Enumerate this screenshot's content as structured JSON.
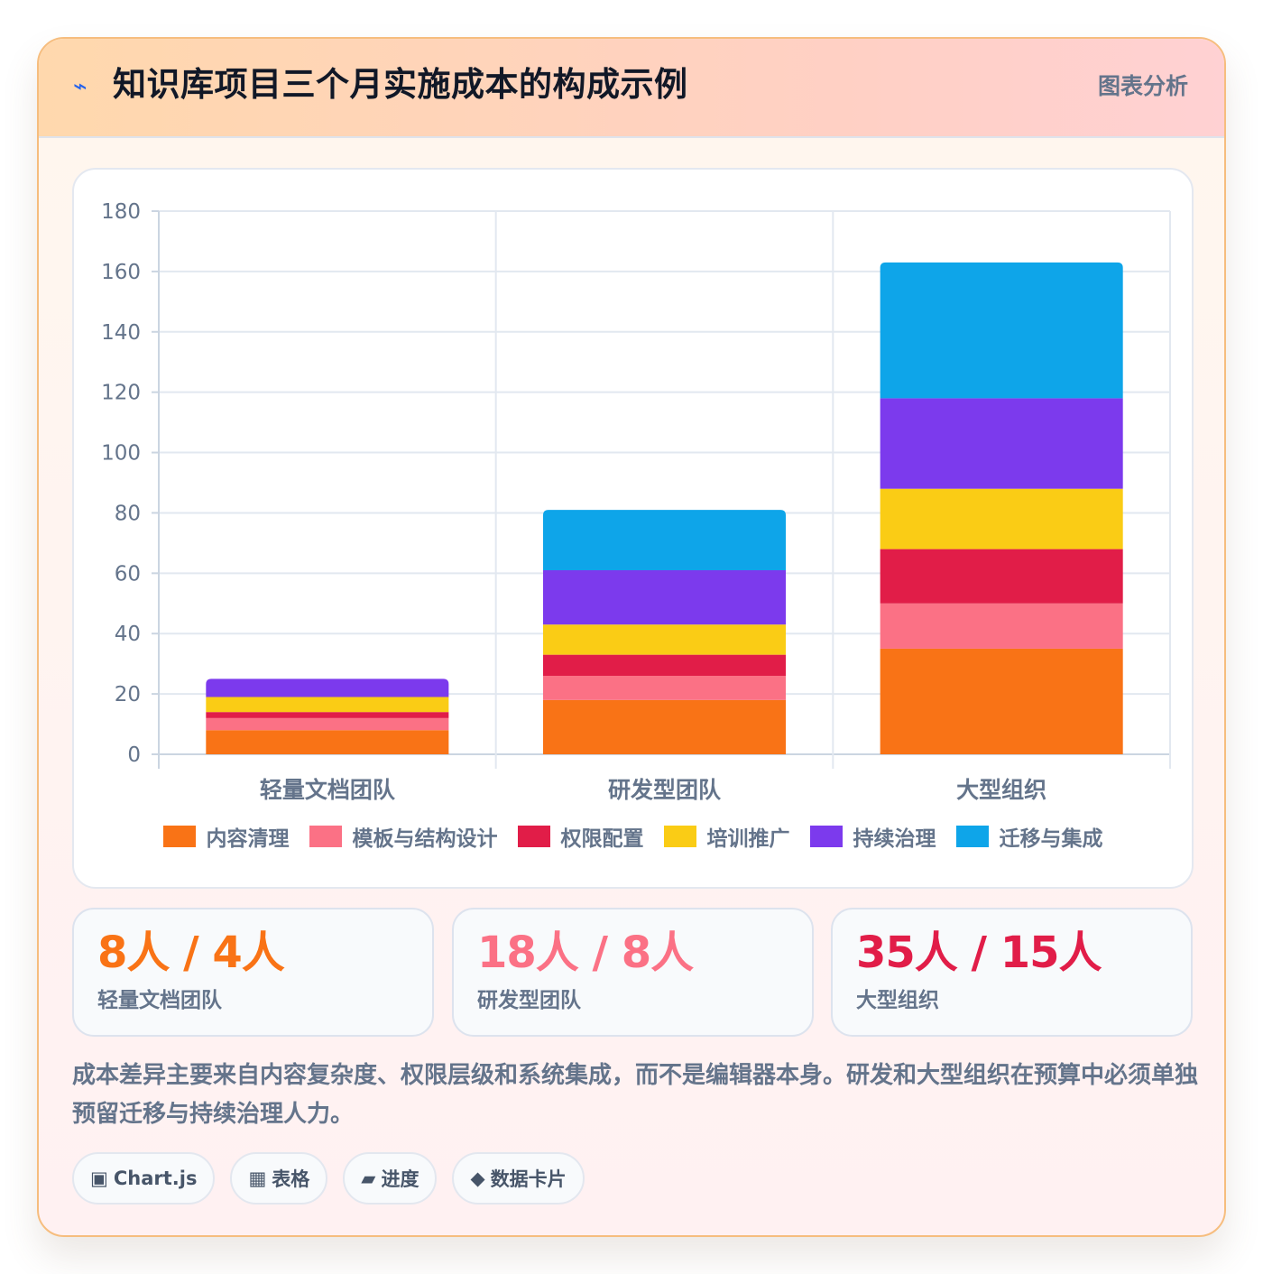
{
  "header": {
    "icon": "lightning-icon",
    "icon_glyph": "⌁",
    "title": "知识库项目三个月实施成本的构成示例",
    "tag": "图表分析"
  },
  "chart_data": {
    "type": "bar",
    "stacked": true,
    "categories": [
      "轻量文档团队",
      "研发型团队",
      "大型组织"
    ],
    "series": [
      {
        "name": "内容清理",
        "color": "#f97316",
        "values": [
          8,
          18,
          35
        ]
      },
      {
        "name": "模板与结构设计",
        "color": "#fb7185",
        "values": [
          4,
          8,
          15
        ]
      },
      {
        "name": "权限配置",
        "color": "#e11d48",
        "values": [
          2,
          7,
          18
        ]
      },
      {
        "name": "培训推广",
        "color": "#facc15",
        "values": [
          5,
          10,
          20
        ]
      },
      {
        "name": "持续治理",
        "color": "#7c3aed",
        "values": [
          6,
          18,
          30
        ]
      },
      {
        "name": "迁移与集成",
        "color": "#0ea5e9",
        "values": [
          0,
          20,
          45
        ]
      }
    ],
    "ylim": [
      0,
      180
    ],
    "yticks": [
      0,
      20,
      40,
      60,
      80,
      100,
      120,
      140,
      160,
      180
    ],
    "grid": true,
    "legend": "bottom"
  },
  "stats": [
    {
      "value": "8人 / 4人",
      "label": "轻量文档团队",
      "color": "#f97316"
    },
    {
      "value": "18人 / 8人",
      "label": "研发型团队",
      "color": "#fb7185"
    },
    {
      "value": "35人 / 15人",
      "label": "大型组织",
      "color": "#e11d48"
    }
  ],
  "note": "成本差异主要来自内容复杂度、权限层级和系统集成，而不是编辑器本身。研发和大型组织在预算中必须单独预留迁移与持续治理人力。",
  "chips": [
    {
      "icon": "square-icon",
      "glyph": "▣",
      "label": "Chart.js"
    },
    {
      "icon": "grid-icon",
      "glyph": "▦",
      "label": "表格"
    },
    {
      "icon": "progress-icon",
      "glyph": "▰",
      "label": "进度"
    },
    {
      "icon": "diamond-icon",
      "glyph": "◆",
      "label": "数据卡片"
    }
  ]
}
